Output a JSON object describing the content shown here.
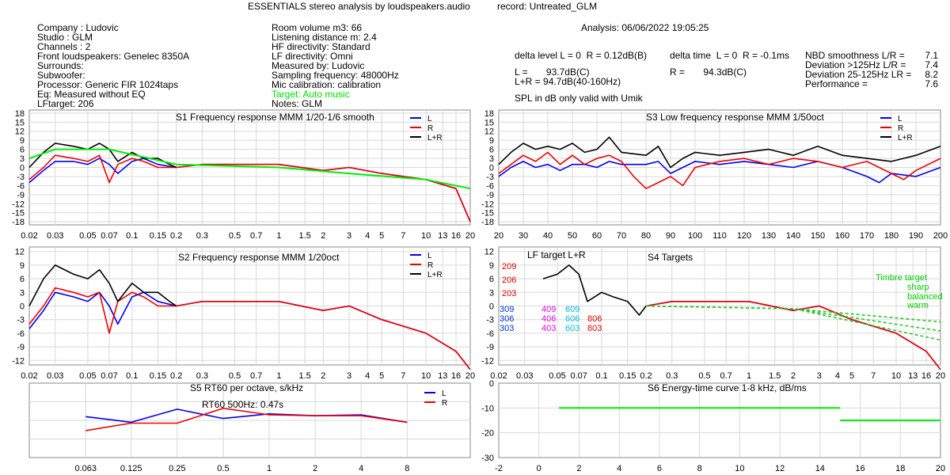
{
  "header": {
    "title": "ESSENTIALS stereo analysis by loudspeakers.audio",
    "record": "record: Untreated_GLM",
    "analysis": "Analysis: 06/06/2022 19:05:25"
  },
  "info_col1": [
    "Company : Ludovic",
    "Studio : GLM",
    "Channels : 2",
    "Front loudspeakers: Genelec 8350A",
    "Surrounds:",
    "Subwoofer:",
    "Processor: Generic FIR 1024taps",
    "Eq: Measured without EQ",
    "LFtarget: 206"
  ],
  "info_col2": [
    "Room volume m3: 66",
    "Listening distance m: 2.4",
    "HF directivity: Standard",
    "LF directivity: Omni",
    "Measured by: Ludovic",
    "Sampling frequency: 48000Hz",
    "Mic calibration: calibration"
  ],
  "info_col2_target": "Target: Auto music",
  "info_col2_notes": "Notes: GLM",
  "delta_level": "delta level L = 0  R = 0.12dB(B)",
  "delta_time": "delta time  L = 0  R = -0.1ms",
  "spl_l": "L =       93.7dB(C)",
  "spl_lr": "L+R = 94.7dB(40-160Hz)",
  "spl_r": "R =       94.3dB(C)",
  "spl_note": "SPL in dB only valid with Umik",
  "metrics": [
    {
      "label": "NBD smoothness L/R =",
      "value": "7.1"
    },
    {
      "label": "Deviation >125Hz L/R =",
      "value": "7.4"
    },
    {
      "label": "Deviation 25-125Hz LR =",
      "value": "8.2"
    },
    {
      "label": "Performance =",
      "value": "7.6"
    }
  ],
  "colors": {
    "L": "#0000ee",
    "L_light": "#8899ff",
    "R": "#ee0000",
    "R_light": "#ff9999",
    "LR": "#000000",
    "target": "#00ee00",
    "grid": "#d8d8d8"
  },
  "chart_data": [
    {
      "id": "S1",
      "type": "line",
      "title": "S1  Frequency response MMM 1/20-1/6 smooth",
      "xscale": "log",
      "xunit": "kHz",
      "xticks": [
        "0.02",
        "0.03",
        "0.05",
        "0.07",
        "0.1",
        "0.15",
        "0.2",
        "0.3",
        "0.5",
        "0.7",
        "1",
        "1.5",
        "2",
        "3",
        "4",
        "5",
        "7",
        "10",
        "13",
        "16",
        "20"
      ],
      "yticks": [
        18,
        15,
        12,
        9,
        6,
        3,
        0,
        -3,
        -6,
        -9,
        -12,
        -15,
        -18
      ],
      "ylim": [
        -19,
        19
      ],
      "legend": [
        "L",
        "R",
        "L+R"
      ],
      "legend_position": "top-right",
      "series": [
        {
          "name": "L",
          "x": [
            0.02,
            0.025,
            0.03,
            0.04,
            0.05,
            0.06,
            0.07,
            0.08,
            0.1,
            0.12,
            0.15,
            0.2,
            0.3,
            0.5,
            1,
            2,
            3,
            5,
            10,
            16,
            20
          ],
          "y": [
            -5,
            -1,
            2,
            2,
            1,
            3,
            1,
            -2,
            2,
            3,
            1,
            0,
            1,
            1,
            1,
            -1,
            0,
            -2,
            -4,
            -7,
            -18
          ]
        },
        {
          "name": "R",
          "x": [
            0.02,
            0.025,
            0.03,
            0.04,
            0.05,
            0.06,
            0.07,
            0.08,
            0.1,
            0.12,
            0.15,
            0.2,
            0.3,
            0.5,
            1,
            2,
            3,
            5,
            10,
            16,
            20
          ],
          "y": [
            -4,
            0,
            4,
            3,
            2,
            4,
            -5,
            1,
            3,
            2,
            0,
            0,
            1,
            1,
            1,
            -1,
            0,
            -2,
            -4,
            -7,
            -18
          ]
        },
        {
          "name": "L+R",
          "x": [
            0.02,
            0.025,
            0.03,
            0.04,
            0.05,
            0.06,
            0.07,
            0.08,
            0.1,
            0.12,
            0.15,
            0.18,
            0.2
          ],
          "y": [
            0,
            5,
            8,
            7,
            6,
            8,
            6,
            2,
            5,
            3,
            3,
            1,
            0
          ]
        },
        {
          "name": "Target",
          "x": [
            0.02,
            0.03,
            0.07,
            0.2,
            1,
            3,
            10,
            20
          ],
          "y": [
            3,
            6,
            6,
            1,
            0,
            -2,
            -4,
            -7
          ]
        }
      ]
    },
    {
      "id": "S3",
      "type": "line",
      "title": "S3  Low frequency response MMM 1/50oct",
      "xscale": "linear",
      "xunit": "Hz",
      "xticks": [
        "20",
        "30",
        "40",
        "50",
        "60",
        "70",
        "80",
        "90",
        "100",
        "110",
        "120",
        "130",
        "140",
        "150",
        "160",
        "170",
        "180",
        "190",
        "200"
      ],
      "yticks": [
        18,
        15,
        12,
        9,
        6,
        3,
        0,
        -3,
        -6,
        -9,
        -12,
        -15,
        -18
      ],
      "ylim": [
        -19,
        19
      ],
      "legend": [
        "L",
        "R",
        "L+R"
      ],
      "legend_position": "top-right",
      "series": [
        {
          "name": "L",
          "x": [
            20,
            25,
            30,
            35,
            40,
            45,
            50,
            55,
            60,
            65,
            70,
            80,
            85,
            90,
            95,
            100,
            110,
            120,
            130,
            140,
            150,
            160,
            170,
            175,
            180,
            190,
            200
          ],
          "y": [
            -3,
            0,
            2,
            0,
            1,
            -1,
            1,
            1,
            0,
            2,
            1,
            1,
            2,
            -2,
            0,
            2,
            1,
            2,
            1,
            0,
            2,
            0,
            -3,
            -5,
            -2,
            -3,
            0
          ]
        },
        {
          "name": "R",
          "x": [
            20,
            25,
            30,
            35,
            40,
            45,
            50,
            55,
            60,
            65,
            70,
            75,
            80,
            85,
            90,
            95,
            100,
            110,
            120,
            130,
            140,
            150,
            160,
            170,
            180,
            185,
            190,
            200
          ],
          "y": [
            -2,
            1,
            4,
            2,
            5,
            1,
            4,
            1,
            3,
            4,
            2,
            -3,
            -7,
            -5,
            -3,
            -6,
            0,
            2,
            3,
            1,
            3,
            2,
            0,
            2,
            -2,
            -4,
            -1,
            3
          ]
        },
        {
          "name": "L+R",
          "x": [
            20,
            25,
            30,
            35,
            40,
            45,
            50,
            55,
            60,
            65,
            70,
            80,
            85,
            90,
            95,
            100,
            110,
            120,
            130,
            140,
            150,
            160,
            170,
            180,
            190,
            200
          ],
          "y": [
            1,
            5,
            8,
            6,
            7,
            6,
            8,
            5,
            6,
            10,
            5,
            4,
            7,
            0,
            3,
            5,
            4,
            5,
            6,
            4,
            7,
            4,
            3,
            2,
            4,
            7
          ]
        }
      ]
    },
    {
      "id": "S2",
      "type": "line",
      "title": "S2  Frequency response MMM 1/20oct",
      "xscale": "log",
      "xunit": "kHz",
      "xticks": [
        "0.02",
        "0.03",
        "0.05",
        "0.07",
        "0.1",
        "0.15",
        "0.2",
        "0.3",
        "0.5",
        "0.7",
        "1",
        "1.5",
        "2",
        "3",
        "4",
        "5",
        "7",
        "10",
        "13",
        "16",
        "20"
      ],
      "yticks": [
        12,
        9,
        6,
        3,
        0,
        -3,
        -6,
        -9,
        -12
      ],
      "ylim": [
        -13,
        13
      ],
      "legend": [
        "L",
        "R",
        "L+R"
      ],
      "legend_position": "top-right",
      "series": [
        {
          "name": "L",
          "x": [
            0.02,
            0.025,
            0.03,
            0.04,
            0.05,
            0.06,
            0.07,
            0.08,
            0.1,
            0.12,
            0.15,
            0.2,
            0.3,
            0.5,
            1,
            2,
            3,
            5,
            10,
            16,
            20
          ],
          "y": [
            -5,
            -1,
            3,
            2,
            1,
            3,
            0,
            -4,
            2,
            3,
            1,
            0,
            1,
            1,
            1,
            -1,
            0,
            -3,
            -6,
            -10,
            -14
          ]
        },
        {
          "name": "R",
          "x": [
            0.02,
            0.025,
            0.03,
            0.04,
            0.05,
            0.06,
            0.07,
            0.08,
            0.1,
            0.12,
            0.15,
            0.2,
            0.3,
            0.5,
            1,
            2,
            3,
            5,
            10,
            16,
            20
          ],
          "y": [
            -4,
            0,
            4,
            3,
            2,
            3,
            -6,
            1,
            3,
            2,
            0,
            0,
            1,
            1,
            1,
            -1,
            0,
            -3,
            -6,
            -10,
            -14
          ]
        },
        {
          "name": "L+R",
          "x": [
            0.02,
            0.025,
            0.03,
            0.04,
            0.05,
            0.06,
            0.07,
            0.08,
            0.1,
            0.12,
            0.15,
            0.18,
            0.2
          ],
          "y": [
            0,
            6,
            9,
            7,
            6,
            8,
            5,
            1,
            5,
            3,
            3,
            1,
            0
          ]
        }
      ]
    },
    {
      "id": "S4",
      "type": "line",
      "title": "S4 Targets",
      "xscale": "log",
      "xunit": "kHz",
      "xticks": [
        "0.02",
        "0.03",
        "0.05",
        "0.07",
        "0.1",
        "0.15",
        "0.2",
        "0.3",
        "0.5",
        "0.7",
        "1",
        "1.5",
        "2",
        "3",
        "4",
        "5",
        "7",
        "10",
        "13",
        "16",
        "20"
      ],
      "yticks": [
        12,
        9,
        6,
        3,
        0,
        -3,
        -6,
        -9,
        -12
      ],
      "ylim": [
        -13,
        13
      ],
      "inner_title": "LF target L+R",
      "timbre_labels": [
        "Timbre target",
        "sharp",
        "balanced",
        "warm"
      ],
      "target_labels": [
        {
          "text": "209",
          "color": "#dd0000"
        },
        {
          "text": "206",
          "color": "#dd0000"
        },
        {
          "text": "203",
          "color": "#dd0000"
        },
        {
          "text": "309",
          "color": "#0033dd"
        },
        {
          "text": "306",
          "color": "#0033dd"
        },
        {
          "text": "303",
          "color": "#0033dd"
        },
        {
          "text": "409",
          "color": "#dd00dd"
        },
        {
          "text": "406",
          "color": "#dd00dd"
        },
        {
          "text": "403",
          "color": "#dd00dd"
        },
        {
          "text": "609",
          "color": "#00bbdd"
        },
        {
          "text": "606",
          "color": "#00bbdd"
        },
        {
          "text": "603",
          "color": "#00bbdd"
        },
        {
          "text": "806",
          "color": "#dd0000"
        },
        {
          "text": "803",
          "color": "#dd0000"
        }
      ],
      "series": [
        {
          "name": "L+R",
          "x": [
            0.04,
            0.05,
            0.06,
            0.07,
            0.08,
            0.1,
            0.12,
            0.15,
            0.18,
            0.2
          ],
          "y": [
            6,
            7,
            9,
            7,
            1,
            3,
            2,
            1,
            -2,
            0
          ]
        },
        {
          "name": "L",
          "x": [
            0.2,
            0.3,
            0.5,
            1,
            2,
            3,
            5,
            10,
            16,
            20
          ],
          "y": [
            0,
            1,
            1,
            1,
            -1,
            0,
            -3,
            -6,
            -10,
            -14
          ]
        },
        {
          "name": "R",
          "x": [
            0.2,
            0.3,
            0.5,
            1,
            2,
            3,
            5,
            10,
            16,
            20
          ],
          "y": [
            0,
            1,
            1,
            1,
            -1,
            0,
            -3,
            -6,
            -10,
            -14
          ]
        }
      ]
    },
    {
      "id": "S5",
      "type": "line",
      "title": "S5  RT60 per octave, s/kHz",
      "xscale": "log",
      "xunit": "kHz",
      "xticks": [
        "0.063",
        "0.125",
        "0.25",
        "0.5",
        "1",
        "2",
        "4",
        "8"
      ],
      "annotation": "RT60 500Hz: 0.47s",
      "ylim": [
        0,
        0.8
      ],
      "legend": [
        "L",
        "R"
      ],
      "legend_position": "top-right",
      "series": [
        {
          "name": "L",
          "x": [
            0.063,
            0.125,
            0.25,
            0.5,
            1,
            2,
            4,
            8
          ],
          "y": [
            0.44,
            0.38,
            0.52,
            0.42,
            0.47,
            0.45,
            0.46,
            0.38
          ]
        },
        {
          "name": "R",
          "x": [
            0.063,
            0.125,
            0.25,
            0.5,
            1,
            2,
            4,
            8
          ],
          "y": [
            0.29,
            0.37,
            0.37,
            0.53,
            0.46,
            0.45,
            0.45,
            0.38
          ]
        }
      ]
    },
    {
      "id": "S6",
      "type": "line",
      "title": "S6  Energy-time curve 1-8 kHz, dB/ms",
      "xscale": "linear",
      "xunit": "ms",
      "xticks": [
        "-2",
        "0",
        "2",
        "4",
        "6",
        "8",
        "10",
        "12",
        "14",
        "16",
        "18",
        "20"
      ],
      "yticks": [
        0,
        -10,
        -20,
        -30
      ],
      "ylim": [
        -30,
        0
      ],
      "series": [
        {
          "name": "target_early",
          "x": [
            1,
            15
          ],
          "y": [
            -10,
            -10
          ]
        },
        {
          "name": "target_late",
          "x": [
            15,
            20
          ],
          "y": [
            -15,
            -15
          ]
        }
      ]
    }
  ]
}
